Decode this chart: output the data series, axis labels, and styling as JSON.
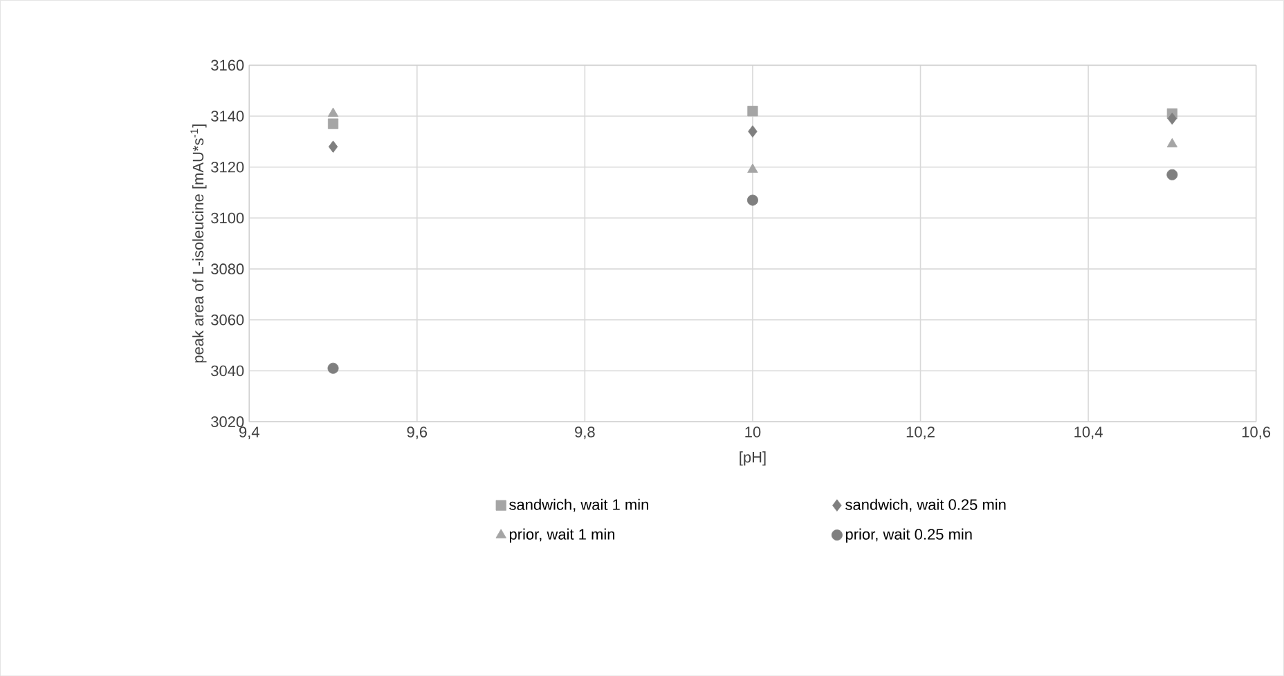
{
  "chart_data": {
    "type": "scatter",
    "xlabel": "[pH]",
    "ylabel": "peak area of L-isoleucine [mAU*s$^{-1}$]",
    "xlim": [
      9.4,
      10.6
    ],
    "xticks": [
      {
        "value": 9.4,
        "label": "9,4"
      },
      {
        "value": 9.6,
        "label": "9,6"
      },
      {
        "value": 9.8,
        "label": "9,8"
      },
      {
        "value": 10,
        "label": "10"
      },
      {
        "value": 10.2,
        "label": "10,2"
      },
      {
        "value": 10.4,
        "label": "10,4"
      },
      {
        "value": 10.6,
        "label": "10,6"
      }
    ],
    "ylim": [
      3020,
      3160
    ],
    "yticks": [
      3020,
      3040,
      3060,
      3080,
      3100,
      3120,
      3140,
      3160
    ],
    "grid": true,
    "legend": "bottom",
    "series": [
      {
        "name": "sandwich, wait 1 min",
        "color": "#a5a5a5",
        "marker": "square",
        "x": [
          9.5,
          10,
          10.5
        ],
        "values": [
          3137,
          3142,
          3141
        ]
      },
      {
        "name": "sandwich, wait 0.25 min",
        "color": "#7f7f7f",
        "marker": "diamond",
        "x": [
          9.5,
          10,
          10.5
        ],
        "values": [
          3128,
          3134,
          3139
        ]
      },
      {
        "name": "prior, wait 1 min",
        "color": "#a5a5a5",
        "marker": "triangle",
        "x": [
          9.5,
          10,
          10.5
        ],
        "values": [
          3141,
          3119,
          3129
        ]
      },
      {
        "name": "prior, wait 0.25 min",
        "color": "#7f7f7f",
        "marker": "circle",
        "x": [
          9.5,
          10,
          10.5
        ],
        "values": [
          3041,
          3107,
          3117
        ]
      }
    ]
  }
}
